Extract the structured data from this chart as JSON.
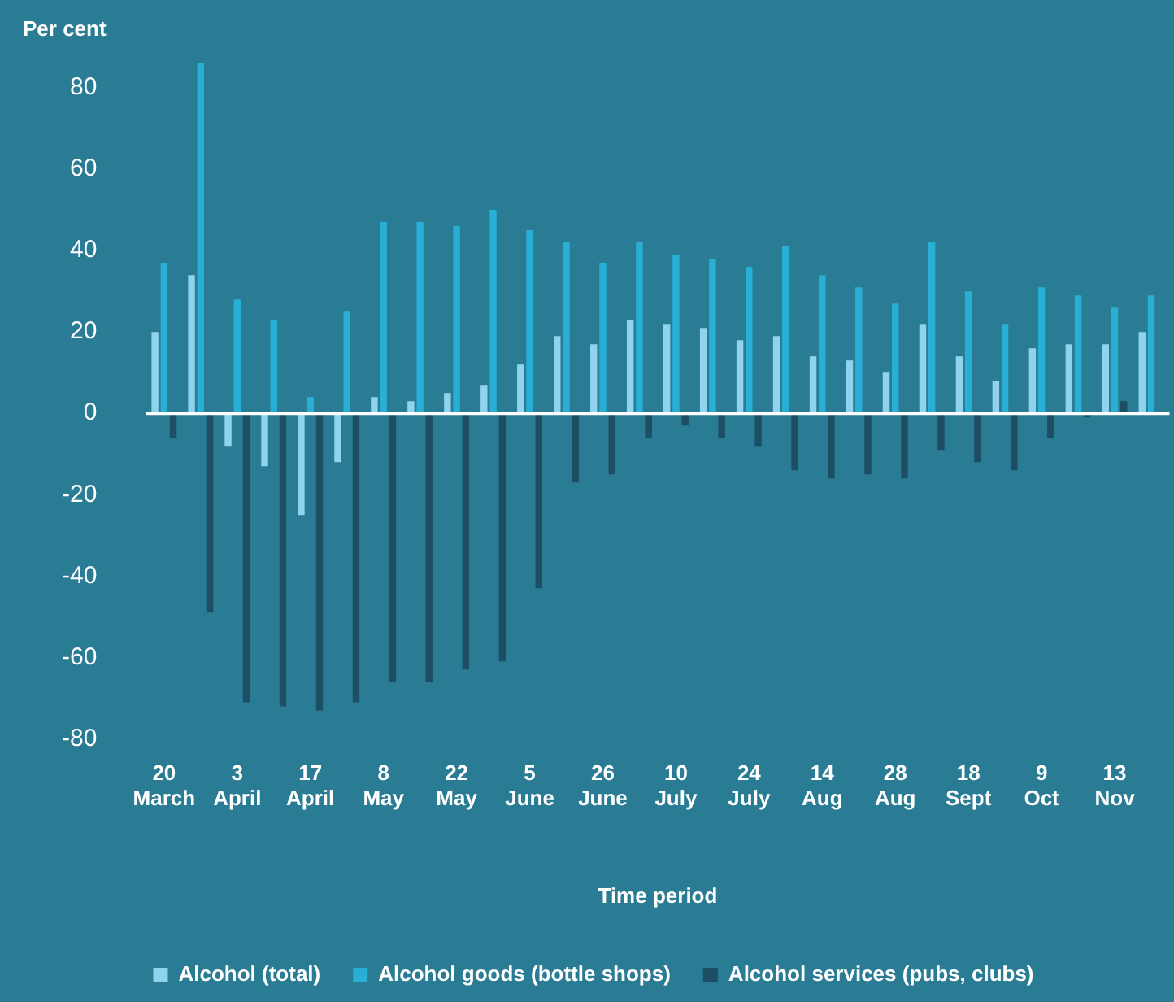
{
  "chart_data": {
    "type": "bar",
    "ylabel": "Per cent",
    "xlabel": "Time period",
    "categories": [
      "20 March",
      null,
      "3 April",
      null,
      "17 April",
      null,
      "8 May",
      null,
      "22 May",
      null,
      "5 June",
      null,
      "26 June",
      null,
      "10 July",
      null,
      "24 July",
      null,
      "14 Aug",
      null,
      "28 Aug",
      null,
      "18 Sept",
      null,
      "9 Oct",
      null,
      "13 Nov",
      null
    ],
    "series": [
      {
        "name": "Alcohol (total)",
        "color": "#8fd3ee",
        "values": [
          20,
          34,
          -8,
          -13,
          -25,
          -12,
          4,
          3,
          5,
          7,
          12,
          19,
          17,
          23,
          22,
          21,
          18,
          19,
          14,
          13,
          10,
          22,
          14,
          8,
          16,
          17,
          17,
          20
        ]
      },
      {
        "name": "Alcohol goods (bottle shops)",
        "color": "#29afd6",
        "values": [
          37,
          86,
          28,
          23,
          4,
          25,
          47,
          47,
          46,
          50,
          45,
          42,
          37,
          42,
          39,
          38,
          36,
          41,
          34,
          31,
          27,
          42,
          30,
          22,
          31,
          29,
          26,
          29
        ]
      },
      {
        "name": "Alcohol services (pubs, clubs)",
        "color": "#1c4f63",
        "values": [
          -6,
          -49,
          -71,
          -72,
          -73,
          -71,
          -66,
          -66,
          -63,
          -61,
          -43,
          -17,
          -15,
          -6,
          -3,
          -6,
          -8,
          -14,
          -16,
          -15,
          -16,
          -9,
          -12,
          -14,
          -6,
          -1,
          3,
          null
        ]
      }
    ],
    "ylim": [
      -80,
      86
    ],
    "yticks": [
      -80,
      -60,
      -40,
      -20,
      0,
      20,
      40,
      60,
      80
    ],
    "grid": false,
    "legend": "bottom",
    "ref_lines": [
      {
        "axis": "y",
        "value": 0,
        "color": "#ffffff"
      }
    ]
  }
}
